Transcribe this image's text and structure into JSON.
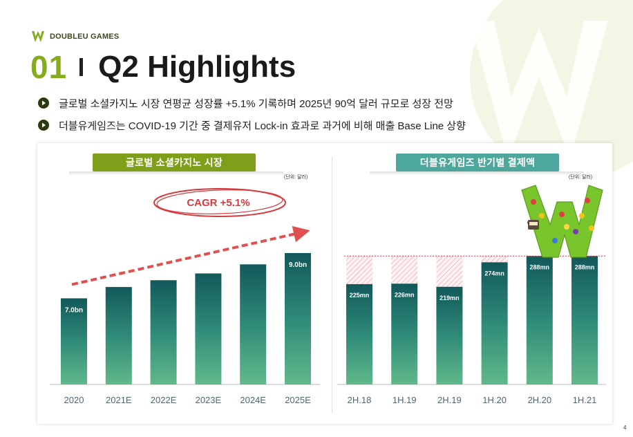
{
  "logo": {
    "text": "DOUBLEU GAMES"
  },
  "header": {
    "number": "01",
    "title": "Q2 Highlights"
  },
  "bullets": [
    {
      "text": "글로벌 소셜카지노 시장 연평균 성장률 +5.1% 기록하며 2025년 90억 달러 규모로 성장 전망"
    },
    {
      "text": "더블유게임즈는 COVID-19 기간 중 결제유저 Lock-in 효과로 과거에 비해 매출 Base Line 상향"
    }
  ],
  "page_number": "4",
  "colors": {
    "green_accent": "#86ab1c",
    "chip_left": "#7e9f19",
    "chip_right": "#4ea79c",
    "bar_top": "#12595a",
    "bar_bottom": "#5fb888",
    "cagr_red": "#e04848"
  },
  "chart_data": [
    {
      "type": "bar",
      "title": "글로벌 소셜카지노 시장",
      "unit_label": "(단위: 달러)",
      "categories": [
        "2020",
        "2021E",
        "2022E",
        "2023E",
        "2024E",
        "2025E"
      ],
      "values": [
        7.0,
        7.5,
        7.8,
        8.1,
        8.5,
        9.0
      ],
      "data_labels": [
        "7.0bn",
        "",
        "",
        "",
        "",
        "9.0bn"
      ],
      "annotation": "CAGR +5.1%",
      "ylim": [
        3.2,
        9.7
      ]
    },
    {
      "type": "bar",
      "title": "더블유게임즈 반기별 결제액",
      "unit_label": "(단위: 달러)",
      "categories": [
        "2H.18",
        "1H.19",
        "2H.19",
        "1H.20",
        "2H.20",
        "1H.21"
      ],
      "values": [
        225,
        226,
        219,
        274,
        288,
        288
      ],
      "data_labels": [
        "225mn",
        "226mn",
        "219mn",
        "274mn",
        "288mn",
        "288mn"
      ],
      "reference_line": 288,
      "ylim": [
        0,
        442
      ]
    }
  ]
}
